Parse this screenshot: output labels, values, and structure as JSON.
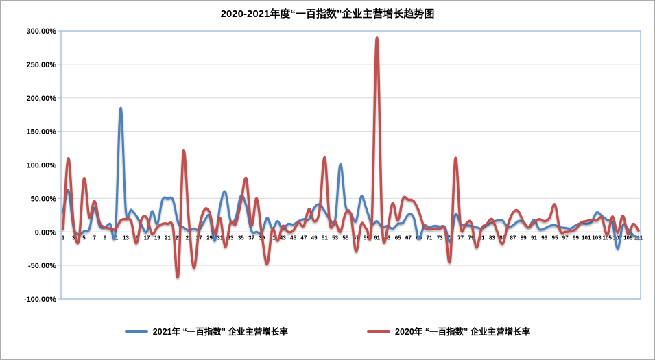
{
  "title": "2020-2021年度“一百指数”企业主营增长趋势图",
  "legend": [
    {
      "label": "2021年 “一百指数” 企业主营增长率",
      "color": "#4f81bd"
    },
    {
      "label": "2020年 “一百指数” 企业主营增长率",
      "color": "#c0504d"
    }
  ],
  "colors": {
    "series_2021": "#4f81bd",
    "series_2020": "#c0504d",
    "gridline": "#d9d9d9",
    "zero_axis": "#c6c6c6",
    "plot_border": "#a7c0e0",
    "canvas_border": "#ababab",
    "text": "#000000"
  },
  "chart_data": {
    "type": "line",
    "smooth": true,
    "grid": true,
    "legend_position": "bottom",
    "title": "2020-2021年度“一百指数”企业主营增长趋势图",
    "xlabel": "",
    "ylabel": "",
    "ylim": [
      -100,
      300
    ],
    "y_axis": {
      "min": -100,
      "max": 300,
      "step": 50,
      "format": "percent",
      "tick_labels": [
        "300.00%",
        "250.00%",
        "200.00%",
        "150.00%",
        "100.00%",
        "50.00%",
        "0.00%",
        "-50.00%",
        "-100.00%"
      ]
    },
    "x_axis": {
      "min": 1,
      "max": 111,
      "tick_labels": [
        "1",
        "3",
        "5",
        "7",
        "9",
        "11",
        "13",
        "15",
        "17",
        "19",
        "21",
        "23",
        "25",
        "27",
        "29",
        "31",
        "33",
        "35",
        "37",
        "39",
        "41",
        "43",
        "45",
        "47",
        "49",
        "51",
        "53",
        "55",
        "57",
        "59",
        "61",
        "63",
        "65",
        "67",
        "69",
        "71",
        "73",
        "75",
        "77",
        "79",
        "81",
        "83",
        "85",
        "87",
        "89",
        "91",
        "93",
        "95",
        "97",
        "99",
        "101",
        "103",
        "105",
        "107",
        "109",
        "111"
      ]
    },
    "series": [
      {
        "name": "2021年 “一百指数” 企业主营增长率",
        "color": "#4f81bd",
        "values": [
          30,
          62,
          7,
          -4,
          1,
          4,
          36,
          9,
          7,
          12,
          0,
          185,
          31,
          33,
          24,
          10,
          0,
          31,
          12,
          48,
          50,
          48,
          14,
          7,
          2,
          5,
          3,
          16,
          24,
          -13,
          38,
          60,
          17,
          21,
          54,
          39,
          2,
          0,
          -1,
          21,
          5,
          16,
          4,
          12,
          11,
          16,
          19,
          19,
          36,
          41,
          31,
          19,
          17,
          101,
          39,
          28,
          16,
          53,
          34,
          12,
          16,
          7,
          9,
          5,
          12,
          14,
          26,
          22,
          -10,
          9,
          7,
          9,
          8,
          7,
          -15,
          26,
          12,
          10,
          9,
          7,
          5,
          10,
          14,
          17,
          17,
          7,
          10,
          16,
          15,
          7,
          18,
          4,
          5,
          9,
          10,
          7,
          6,
          5,
          10,
          13,
          12,
          15,
          29,
          24,
          18,
          14,
          -25,
          10,
          4,
          -5,
          -8
        ]
      },
      {
        "name": "2020年 “一百指数” 企业主营增长率",
        "color": "#c0504d",
        "values": [
          4,
          110,
          12,
          -13,
          80,
          22,
          46,
          14,
          7,
          5,
          4,
          17,
          19,
          16,
          -17,
          19,
          21,
          -3,
          7,
          12,
          12,
          7,
          -65,
          120,
          20,
          -54,
          5,
          33,
          29,
          -3,
          21,
          -22,
          14,
          12,
          45,
          80,
          10,
          50,
          -5,
          -48,
          4,
          -13,
          9,
          0,
          2,
          14,
          9,
          34,
          16,
          31,
          111,
          12,
          16,
          0,
          28,
          26,
          -29,
          12,
          5,
          12,
          290,
          7,
          4,
          43,
          17,
          50,
          48,
          46,
          31,
          8,
          4,
          5,
          5,
          4,
          -42,
          110,
          7,
          12,
          14,
          -23,
          5,
          12,
          19,
          0,
          -18,
          10,
          29,
          31,
          15,
          7,
          14,
          19,
          16,
          21,
          41,
          2,
          0,
          1,
          4,
          14,
          16,
          18,
          17,
          21,
          -5,
          23,
          -1,
          24,
          -3,
          12,
          2
        ]
      }
    ]
  }
}
